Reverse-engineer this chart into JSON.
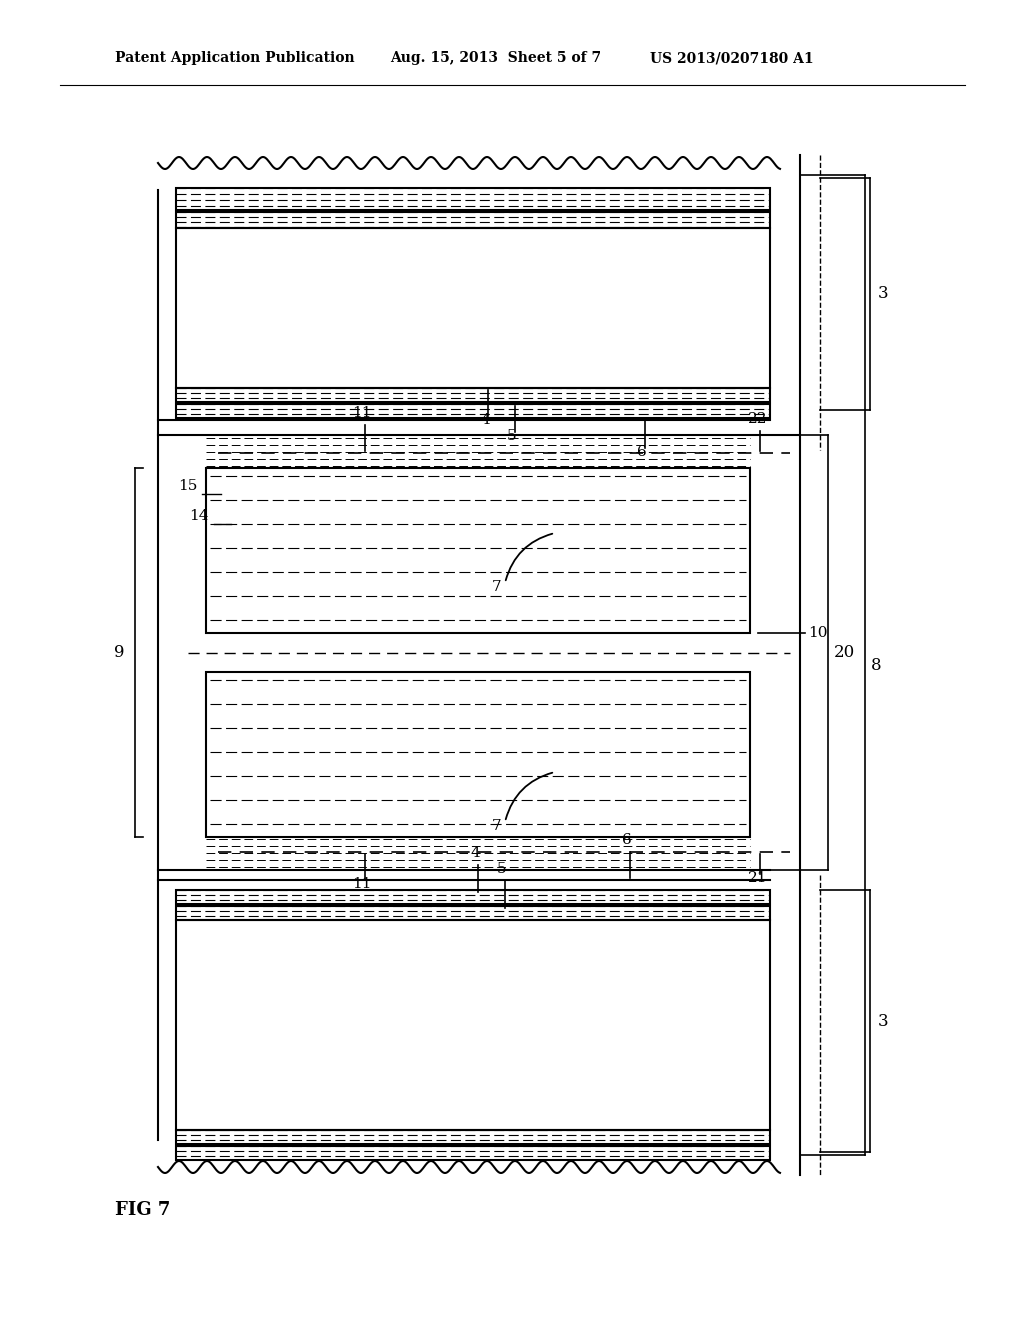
{
  "title_left": "Patent Application Publication",
  "title_mid": "Aug. 15, 2013  Sheet 5 of 7",
  "title_right": "US 2013/0207180 A1",
  "fig_label": "FIG 7",
  "bg_color": "#ffffff",
  "line_color": "#000000"
}
